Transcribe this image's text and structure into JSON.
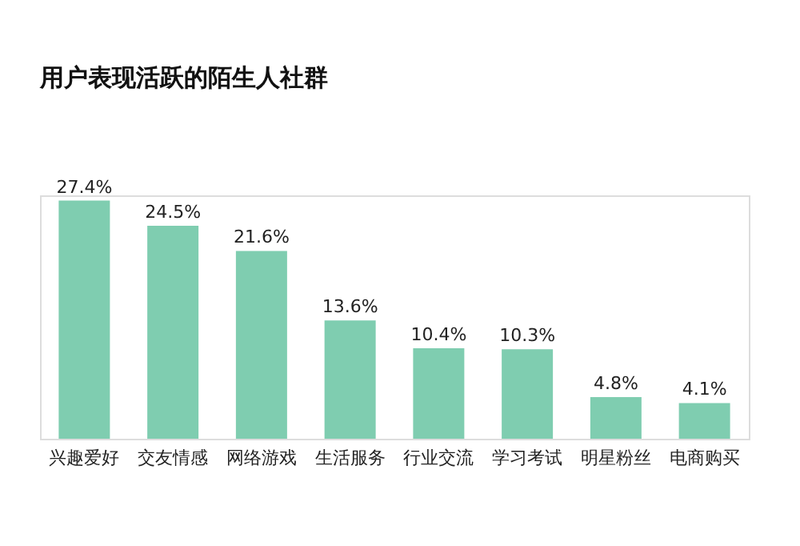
{
  "chart_data": {
    "type": "bar",
    "title": "用户表现活跃的陌生人社群",
    "categories": [
      "兴趣爱好",
      "交友情感",
      "网络游戏",
      "生活服务",
      "行业交流",
      "学习考试",
      "明星粉丝",
      "电商购买"
    ],
    "values": [
      27.4,
      24.5,
      21.6,
      13.6,
      10.4,
      10.3,
      4.8,
      4.1
    ],
    "value_labels": [
      "27.4%",
      "24.5%",
      "21.6%",
      "13.6%",
      "10.4%",
      "10.3%",
      "4.8%",
      "4.1%"
    ],
    "color": "#7fcdb0",
    "grid": false
  }
}
